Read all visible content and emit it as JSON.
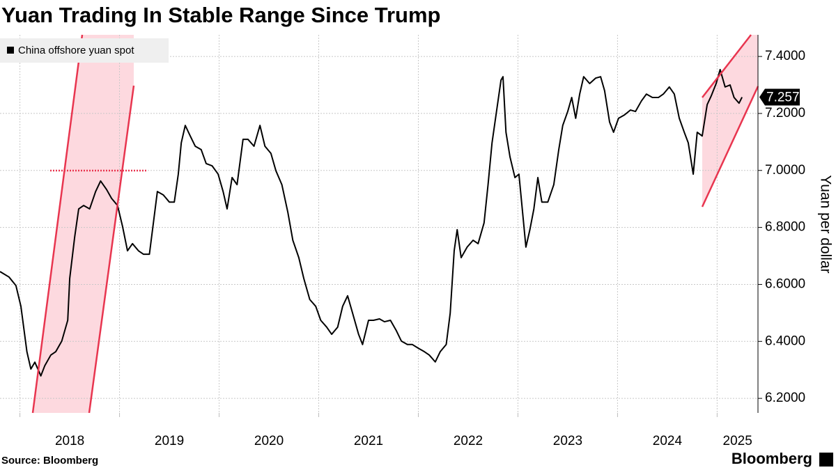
{
  "chart_data": {
    "type": "line",
    "title": "Yuan Trading In Stable Range Since Trump",
    "y_axis_label": "Yuan per dollar",
    "source": "Source: Bloomberg",
    "brand": "Bloomberg",
    "legend_position": "upper left",
    "grid": true,
    "xlim": [
      2017.8,
      2025.41
    ],
    "xticks": [
      2018,
      2019,
      2020,
      2021,
      2022,
      2023,
      2024,
      2025
    ],
    "ylim": [
      6.149,
      7.476
    ],
    "yticks": [
      {
        "value": 6.2,
        "label": "6.2000"
      },
      {
        "value": 6.4,
        "label": "6.4000"
      },
      {
        "value": 6.6,
        "label": "6.6000"
      },
      {
        "value": 6.8,
        "label": "6.8000"
      },
      {
        "value": 7.0,
        "label": "7.0000"
      },
      {
        "value": 7.2,
        "label": "7.2000"
      },
      {
        "value": 7.4,
        "label": "7.4000"
      }
    ],
    "last_value": 7.2572,
    "x": [
      2017.8,
      2017.89,
      2017.96,
      2018.01,
      2018.07,
      2018.11,
      2018.15,
      2018.21,
      2018.25,
      2018.31,
      2018.36,
      2018.42,
      2018.48,
      2018.5,
      2018.55,
      2018.59,
      2018.64,
      2018.7,
      2018.76,
      2018.81,
      2018.87,
      2018.92,
      2018.98,
      2019.03,
      2019.08,
      2019.13,
      2019.19,
      2019.24,
      2019.3,
      2019.34,
      2019.38,
      2019.44,
      2019.5,
      2019.55,
      2019.59,
      2019.62,
      2019.66,
      2019.71,
      2019.76,
      2019.82,
      2019.87,
      2019.93,
      2019.99,
      2020.04,
      2020.08,
      2020.13,
      2020.18,
      2020.24,
      2020.29,
      2020.35,
      2020.41,
      2020.46,
      2020.52,
      2020.57,
      2020.63,
      2020.69,
      2020.74,
      2020.8,
      2020.85,
      2020.91,
      2020.97,
      2021.02,
      2021.08,
      2021.13,
      2021.19,
      2021.24,
      2021.29,
      2021.34,
      2021.4,
      2021.44,
      2021.5,
      2021.55,
      2021.61,
      2021.66,
      2021.72,
      2021.78,
      2021.83,
      2021.89,
      2021.94,
      2022.0,
      2022.06,
      2022.11,
      2022.17,
      2022.22,
      2022.28,
      2022.32,
      2022.36,
      2022.39,
      2022.43,
      2022.49,
      2022.55,
      2022.6,
      2022.66,
      2022.7,
      2022.74,
      2022.78,
      2022.83,
      2022.85,
      2022.88,
      2022.92,
      2022.97,
      2023.01,
      2023.05,
      2023.08,
      2023.12,
      2023.16,
      2023.2,
      2023.24,
      2023.3,
      2023.36,
      2023.41,
      2023.45,
      2023.5,
      2023.54,
      2023.58,
      2023.62,
      2023.66,
      2023.72,
      2023.78,
      2023.83,
      2023.87,
      2023.92,
      2023.96,
      2024.01,
      2024.07,
      2024.13,
      2024.18,
      2024.24,
      2024.29,
      2024.35,
      2024.41,
      2024.46,
      2024.52,
      2024.57,
      2024.62,
      2024.67,
      2024.71,
      2024.76,
      2024.8,
      2024.85,
      2024.9,
      2024.94,
      2024.99,
      2025.03,
      2025.08,
      2025.13,
      2025.17,
      2025.22,
      2025.25
    ],
    "series": [
      {
        "name": "China offshore yuan spot",
        "color": "#000000",
        "values": [
          6.645,
          6.626,
          6.596,
          6.523,
          6.364,
          6.303,
          6.327,
          6.279,
          6.315,
          6.352,
          6.364,
          6.401,
          6.474,
          6.621,
          6.767,
          6.865,
          6.877,
          6.865,
          6.926,
          6.963,
          6.933,
          6.902,
          6.877,
          6.804,
          6.718,
          6.743,
          6.718,
          6.706,
          6.706,
          6.816,
          6.926,
          6.914,
          6.889,
          6.889,
          6.987,
          7.097,
          7.158,
          7.121,
          7.085,
          7.073,
          7.024,
          7.016,
          6.987,
          6.926,
          6.865,
          6.975,
          6.95,
          7.109,
          7.109,
          7.085,
          7.158,
          7.085,
          7.06,
          6.999,
          6.95,
          6.853,
          6.755,
          6.694,
          6.621,
          6.547,
          6.523,
          6.474,
          6.45,
          6.425,
          6.45,
          6.523,
          6.56,
          6.499,
          6.425,
          6.389,
          6.474,
          6.474,
          6.479,
          6.469,
          6.474,
          6.437,
          6.401,
          6.389,
          6.389,
          6.376,
          6.364,
          6.352,
          6.328,
          6.364,
          6.389,
          6.499,
          6.718,
          6.792,
          6.694,
          6.731,
          6.755,
          6.743,
          6.816,
          6.95,
          7.097,
          7.195,
          7.317,
          7.329,
          7.134,
          7.048,
          6.975,
          6.987,
          6.841,
          6.731,
          6.792,
          6.865,
          6.975,
          6.889,
          6.889,
          6.95,
          7.073,
          7.158,
          7.207,
          7.256,
          7.183,
          7.268,
          7.329,
          7.305,
          7.324,
          7.329,
          7.28,
          7.17,
          7.134,
          7.183,
          7.195,
          7.212,
          7.207,
          7.244,
          7.268,
          7.256,
          7.256,
          7.268,
          7.293,
          7.268,
          7.183,
          7.134,
          7.097,
          6.987,
          7.134,
          7.121,
          7.231,
          7.261,
          7.305,
          7.354,
          7.293,
          7.3,
          7.256,
          7.236,
          7.2572
        ]
      }
    ]
  }
}
